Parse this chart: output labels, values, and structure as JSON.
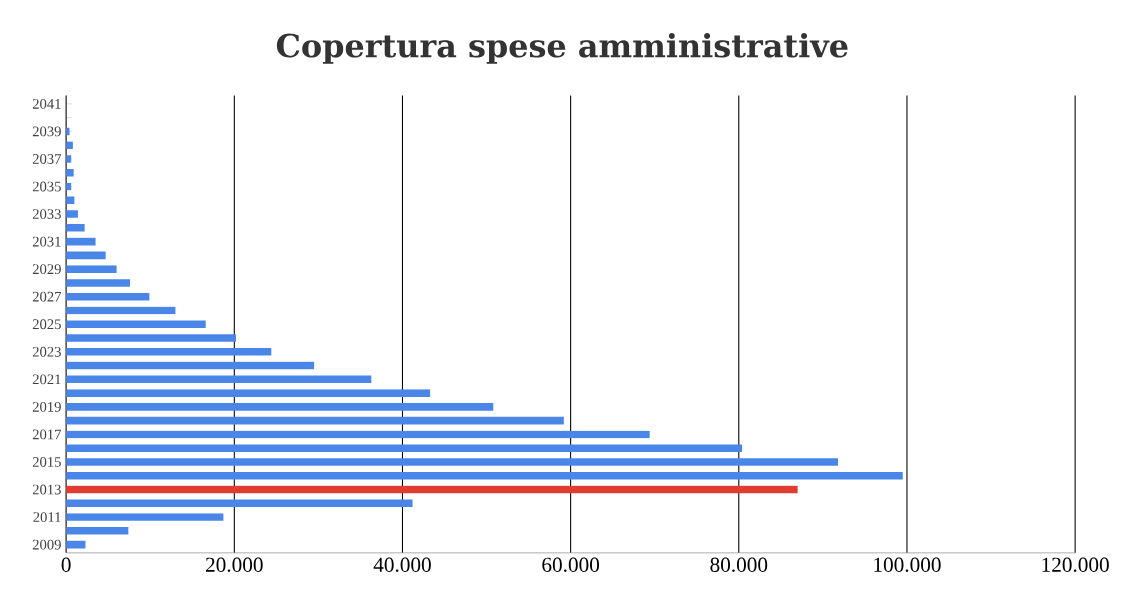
{
  "chart_data": {
    "type": "bar",
    "orientation": "horizontal",
    "title": "Copertura spese amministrative",
    "categories": [
      "2041",
      null,
      "2039",
      null,
      "2037",
      null,
      "2035",
      null,
      "2033",
      null,
      "2031",
      null,
      "2029",
      null,
      "2027",
      null,
      "2025",
      null,
      "2023",
      null,
      "2021",
      null,
      "2019",
      null,
      "2017",
      null,
      "2015",
      null,
      "2013",
      null,
      "2011",
      null,
      "2009"
    ],
    "values": [
      0,
      0,
      400,
      800,
      600,
      900,
      600,
      1000,
      1400,
      2200,
      3500,
      4700,
      6000,
      7600,
      9900,
      13000,
      16600,
      20200,
      24400,
      29500,
      36300,
      43300,
      50800,
      59200,
      69400,
      80400,
      91800,
      99500,
      87000,
      41200,
      18700,
      7400,
      2300
    ],
    "colors": [
      "#4a86e8",
      "#4a86e8",
      "#4a86e8",
      "#4a86e8",
      "#4a86e8",
      "#4a86e8",
      "#4a86e8",
      "#4a86e8",
      "#4a86e8",
      "#4a86e8",
      "#4a86e8",
      "#4a86e8",
      "#4a86e8",
      "#4a86e8",
      "#4a86e8",
      "#4a86e8",
      "#4a86e8",
      "#4a86e8",
      "#4a86e8",
      "#4a86e8",
      "#4a86e8",
      "#4a86e8",
      "#4a86e8",
      "#4a86e8",
      "#4a86e8",
      "#4a86e8",
      "#4a86e8",
      "#4a86e8",
      "#e03c31",
      "#4a86e8",
      "#4a86e8",
      "#4a86e8",
      "#4a86e8"
    ],
    "xlim": [
      0,
      120000
    ],
    "xticks": [
      {
        "value": 0,
        "label": "0"
      },
      {
        "value": 20000,
        "label": "20.000"
      },
      {
        "value": 40000,
        "label": "40.000"
      },
      {
        "value": 60000,
        "label": "60.000"
      },
      {
        "value": 80000,
        "label": "80.000"
      },
      {
        "value": 100000,
        "label": "100.000"
      },
      {
        "value": 120000,
        "label": "120.000"
      }
    ],
    "grid": "x"
  }
}
